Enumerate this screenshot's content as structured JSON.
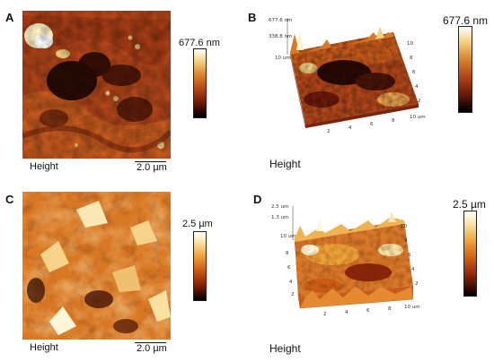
{
  "panels": {
    "A": {
      "letter": "A",
      "caption": "Height",
      "scale_label": "2.0 µm",
      "colorbar_max": "677.6 nm"
    },
    "B": {
      "letter": "B",
      "caption": "Height",
      "colorbar_max": "677.6 nm",
      "z_ticks": [
        "677.6 nm",
        "338.8 nm"
      ],
      "y_ticks": [
        "10",
        "8",
        "6",
        "4",
        "2"
      ],
      "x_ticks": [
        "2",
        "4",
        "6",
        "8",
        "10 um"
      ],
      "left_tick": "10 um"
    },
    "C": {
      "letter": "C",
      "caption": "Height",
      "scale_label": "2.0 µm",
      "colorbar_max": "2.5 µm"
    },
    "D": {
      "letter": "D",
      "caption": "Height",
      "colorbar_max": "2.5 µm",
      "z_ticks": [
        "2.5 um",
        "1.3 um"
      ],
      "y_ticks": [
        "10",
        "8",
        "6",
        "4",
        "2"
      ],
      "x_ticks": [
        "2",
        "4",
        "6",
        "8",
        "10 um"
      ],
      "left_ticks": [
        "10 um",
        "8",
        "6",
        "4",
        "2"
      ]
    }
  },
  "colors": {
    "afm_dark": "#1a0502",
    "afm_mid": "#b3461a",
    "afm_light": "#f2cf80"
  }
}
